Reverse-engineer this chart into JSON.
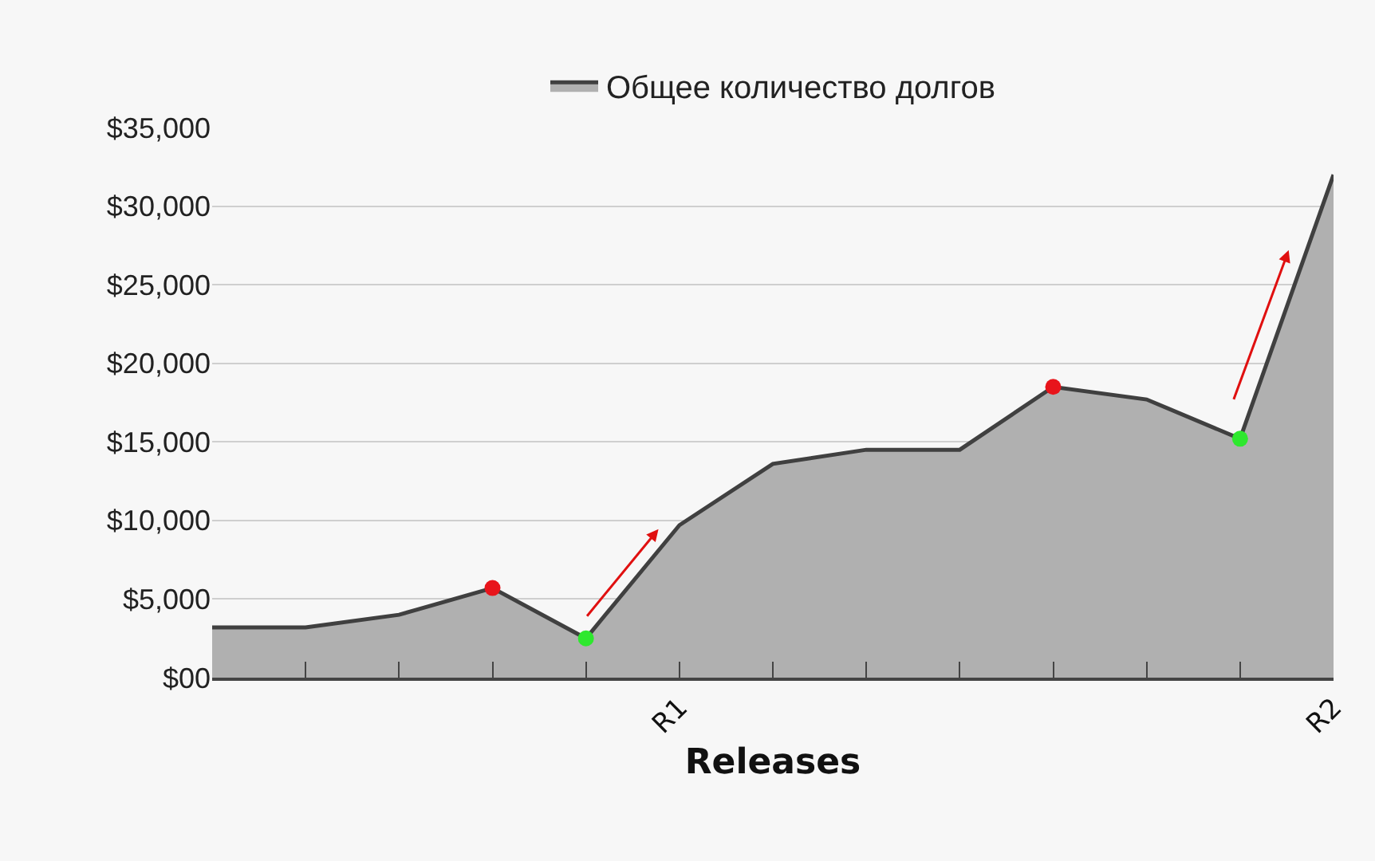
{
  "chart_data": {
    "type": "area",
    "xlabel": "Releases",
    "categories": [
      null,
      null,
      null,
      null,
      null,
      "R1",
      null,
      null,
      null,
      null,
      null,
      null,
      "R2"
    ],
    "series": [
      {
        "name": "Общее количество долгов",
        "color": "#b0b0b0",
        "values": [
          3200,
          3200,
          4000,
          5700,
          2500,
          9700,
          13600,
          14500,
          14500,
          18500,
          17700,
          15200,
          32000
        ]
      },
      {
        "type": "scatter",
        "marker": "circle",
        "colors": [
          null,
          null,
          null,
          "#e8141b",
          "#2ee82e",
          null,
          null,
          null,
          null,
          "#e8141b",
          null,
          "#2ee82e",
          null
        ],
        "values": [
          null,
          null,
          null,
          5700,
          2500,
          null,
          null,
          null,
          null,
          18500,
          null,
          15200,
          null
        ]
      }
    ],
    "ylim": [
      0,
      35000
    ],
    "yticks": [
      {
        "value": 0,
        "label": "$00"
      },
      {
        "value": 5000,
        "label": "$5,000"
      },
      {
        "value": 10000,
        "label": "$10,000"
      },
      {
        "value": 15000,
        "label": "$15,000"
      },
      {
        "value": 20000,
        "label": "$20,000"
      },
      {
        "value": 25000,
        "label": "$25,000"
      },
      {
        "value": 30000,
        "label": "$30,000"
      },
      {
        "value": 35000,
        "label": "$35,000"
      }
    ],
    "grid": "y",
    "legend": "top"
  }
}
